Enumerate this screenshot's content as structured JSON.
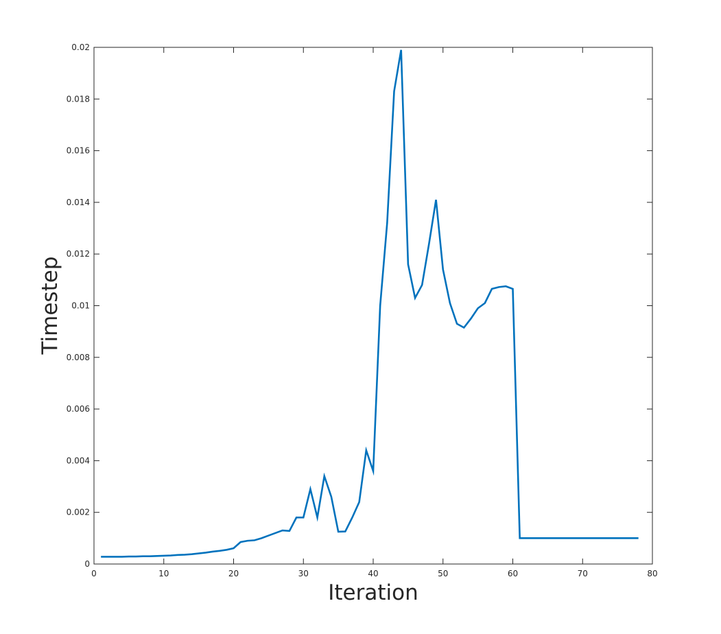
{
  "chart_data": {
    "type": "line",
    "title": "",
    "xlabel": "Iteration",
    "ylabel": "Timestep",
    "xlim": [
      0,
      80
    ],
    "ylim": [
      0,
      0.02
    ],
    "x_ticks": [
      0,
      10,
      20,
      30,
      40,
      50,
      60,
      70,
      80
    ],
    "y_ticks": [
      0,
      0.002,
      0.004,
      0.006,
      0.008,
      0.01,
      0.012,
      0.014,
      0.016,
      0.018,
      0.02
    ],
    "x_tick_labels": [
      "0",
      "10",
      "20",
      "30",
      "40",
      "50",
      "60",
      "70",
      "80"
    ],
    "y_tick_labels": [
      "0",
      "0.002",
      "0.004",
      "0.006",
      "0.008",
      "0.01",
      "0.012",
      "0.014",
      "0.016",
      "0.018",
      "0.02"
    ],
    "grid": false,
    "box": true,
    "series": [
      {
        "color": "#0072bd",
        "x": [
          1,
          2,
          3,
          4,
          5,
          6,
          7,
          8,
          9,
          10,
          11,
          12,
          13,
          14,
          15,
          16,
          17,
          18,
          19,
          20,
          21,
          22,
          23,
          24,
          25,
          26,
          27,
          28,
          29,
          30,
          31,
          32,
          33,
          34,
          35,
          36,
          37,
          38,
          39,
          40,
          41,
          42,
          43,
          44,
          45,
          46,
          47,
          48,
          49,
          50,
          51,
          52,
          53,
          54,
          55,
          56,
          57,
          58,
          59,
          60,
          61,
          62,
          63,
          64,
          65,
          66,
          67,
          68,
          69,
          70,
          71,
          72,
          73,
          74,
          75,
          76,
          77,
          78
        ],
        "y": [
          0.00028,
          0.00028,
          0.00028,
          0.00028,
          0.00029,
          0.00029,
          0.0003,
          0.0003,
          0.00031,
          0.00032,
          0.00033,
          0.00035,
          0.00036,
          0.00038,
          0.00041,
          0.00044,
          0.00048,
          0.00051,
          0.00055,
          0.00061,
          0.00085,
          0.0009,
          0.00092,
          0.001,
          0.0011,
          0.0012,
          0.0013,
          0.00128,
          0.0018,
          0.0018,
          0.0029,
          0.0018,
          0.0034,
          0.0026,
          0.00125,
          0.00126,
          0.0018,
          0.0024,
          0.0044,
          0.0036,
          0.01,
          0.0132,
          0.0183,
          0.0199,
          0.0116,
          0.0103,
          0.0108,
          0.0124,
          0.0141,
          0.0114,
          0.0101,
          0.0093,
          0.00915,
          0.0095,
          0.0099,
          0.0101,
          0.01065,
          0.01072,
          0.01075,
          0.01065,
          0.001,
          0.001,
          0.001,
          0.001,
          0.001,
          0.001,
          0.001,
          0.001,
          0.001,
          0.001,
          0.001,
          0.001,
          0.001,
          0.001,
          0.001,
          0.001,
          0.001,
          0.001
        ]
      }
    ]
  }
}
